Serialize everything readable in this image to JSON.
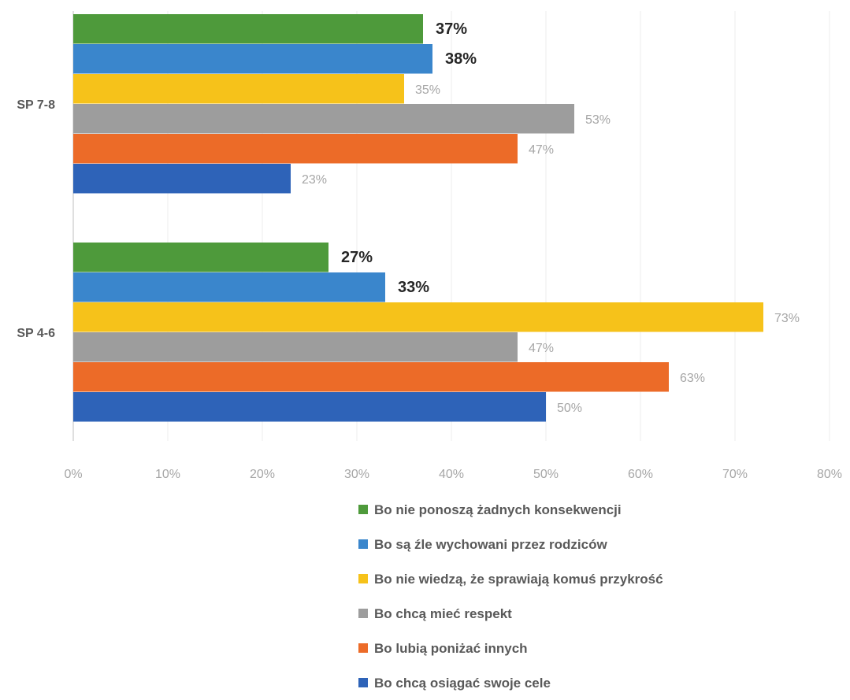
{
  "chart_data": {
    "type": "bar",
    "orientation": "horizontal",
    "title": "",
    "xlabel": "",
    "ylabel": "",
    "xlim": [
      0,
      80
    ],
    "x_ticks": [
      "0%",
      "10%",
      "20%",
      "30%",
      "40%",
      "50%",
      "60%",
      "70%",
      "80%"
    ],
    "categories": [
      "SP 7-8",
      "SP 4-6"
    ],
    "grid": true,
    "legend_position": "bottom-right",
    "series": [
      {
        "name": "Bo nie ponoszą żadnych konsekwencji",
        "color": "#4e9a3b",
        "values": [
          37,
          27
        ],
        "labels": [
          "37%",
          "27%"
        ],
        "label_emphasis": true
      },
      {
        "name": "Bo są źle wychowani przez rodziców",
        "color": "#3a86cc",
        "values": [
          38,
          33
        ],
        "labels": [
          "38%",
          "33%"
        ],
        "label_emphasis": true
      },
      {
        "name": "Bo nie wiedzą, że sprawiają komuś przykrość",
        "color": "#f6c21a",
        "values": [
          35,
          73
        ],
        "labels": [
          "35%",
          "73%"
        ],
        "label_emphasis": false
      },
      {
        "name": "Bo chcą mieć respekt",
        "color": "#9d9d9d",
        "values": [
          53,
          47
        ],
        "labels": [
          "53%",
          "47%"
        ],
        "label_emphasis": false
      },
      {
        "name": "Bo lubią poniżać innych",
        "color": "#ec6b28",
        "values": [
          47,
          63
        ],
        "labels": [
          "47%",
          "63%"
        ],
        "label_emphasis": false
      },
      {
        "name": "Bo chcą osiągać swoje cele",
        "color": "#2e63b8",
        "values": [
          23,
          50
        ],
        "labels": [
          "23%",
          "50%"
        ],
        "label_emphasis": false
      }
    ]
  }
}
